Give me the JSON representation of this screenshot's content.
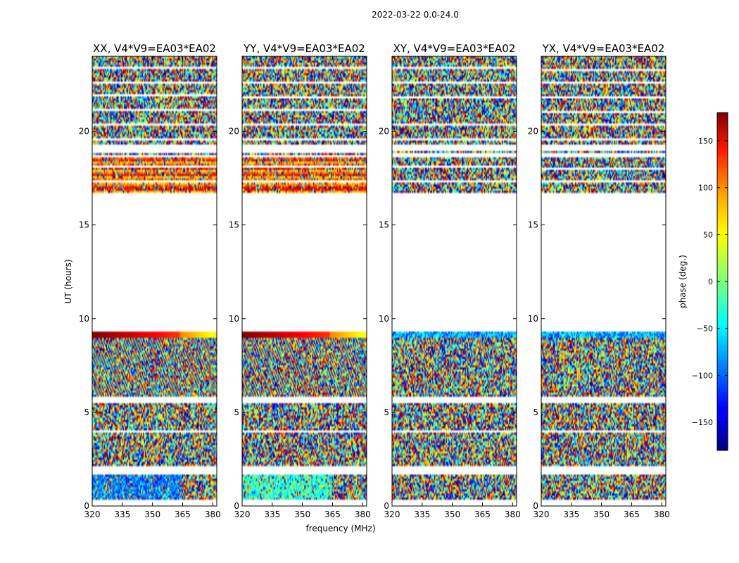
{
  "figure": {
    "title": "2022-03-22 0.0-24.0",
    "xlabel": "frequency (MHz)",
    "ylabel": "UT (hours)"
  },
  "colorbar": {
    "label": "phase (deg.)",
    "range": [
      -180,
      180
    ],
    "ticks": [
      150,
      100,
      50,
      0,
      -50,
      -100,
      -150
    ],
    "tick_labels": [
      "150",
      "100",
      "50",
      "0",
      "−50",
      "−100",
      "−150"
    ],
    "colormap": "jet"
  },
  "chart_data": [
    {
      "type": "heatmap",
      "title": "XX, V4*V9=EA03*EA02",
      "xlim": [
        320,
        382
      ],
      "ylim": [
        0,
        24
      ],
      "xticks": [
        320,
        335,
        350,
        365,
        380
      ],
      "yticks": [
        0,
        5,
        10,
        15,
        20
      ],
      "data_time_ranges_hours": [
        [
          0.3,
          1.7
        ],
        [
          2.1,
          2.3
        ],
        [
          2.4,
          3.9
        ],
        [
          4.0,
          5.5
        ],
        [
          5.8,
          9.3
        ],
        [
          16.7,
          18.6
        ],
        [
          18.7,
          19.0
        ],
        [
          19.3,
          22.5
        ],
        [
          22.6,
          24.0
        ]
      ],
      "pattern": "mostly random phase; coherent smooth phase near 9.0-9.3 h and 16.7-18.6 h; blue/cyan bias below 1.7 h"
    },
    {
      "type": "heatmap",
      "title": "YY, V4*V9=EA03*EA02",
      "xlim": [
        320,
        382
      ],
      "ylim": [
        0,
        24
      ],
      "xticks": [
        320,
        335,
        350,
        365,
        380
      ],
      "yticks": [
        0,
        5,
        10,
        15,
        20
      ],
      "data_time_ranges_hours": [
        [
          0.3,
          1.7
        ],
        [
          2.1,
          2.3
        ],
        [
          2.4,
          3.9
        ],
        [
          4.0,
          5.5
        ],
        [
          5.8,
          9.3
        ],
        [
          16.7,
          18.6
        ],
        [
          18.7,
          19.0
        ],
        [
          19.3,
          22.5
        ],
        [
          22.6,
          24.0
        ]
      ],
      "pattern": "mostly random phase; coherent smooth phase near 9.0-9.3 h and 16.7-18.6 h; cyan/green bias below 1.7 h"
    },
    {
      "type": "heatmap",
      "title": "XY, V4*V9=EA03*EA02",
      "xlim": [
        320,
        382
      ],
      "ylim": [
        0,
        24
      ],
      "xticks": [
        320,
        335,
        350,
        365,
        380
      ],
      "yticks": [
        0,
        5,
        10,
        15,
        20
      ],
      "data_time_ranges_hours": [
        [
          0.3,
          1.7
        ],
        [
          2.1,
          2.3
        ],
        [
          2.4,
          3.9
        ],
        [
          4.0,
          5.5
        ],
        [
          5.8,
          9.3
        ],
        [
          16.7,
          18.6
        ],
        [
          18.7,
          19.0
        ],
        [
          19.3,
          22.5
        ],
        [
          22.6,
          24.0
        ]
      ],
      "pattern": "random phase noise throughout"
    },
    {
      "type": "heatmap",
      "title": "YX, V4*V9=EA03*EA02",
      "xlim": [
        320,
        382
      ],
      "ylim": [
        0,
        24
      ],
      "xticks": [
        320,
        335,
        350,
        365,
        380
      ],
      "yticks": [
        0,
        5,
        10,
        15,
        20
      ],
      "data_time_ranges_hours": [
        [
          0.3,
          1.7
        ],
        [
          2.1,
          2.3
        ],
        [
          2.4,
          3.9
        ],
        [
          4.0,
          5.5
        ],
        [
          5.8,
          9.3
        ],
        [
          16.7,
          18.6
        ],
        [
          18.7,
          19.0
        ],
        [
          19.3,
          22.5
        ],
        [
          22.6,
          24.0
        ]
      ],
      "pattern": "random phase noise throughout"
    }
  ]
}
